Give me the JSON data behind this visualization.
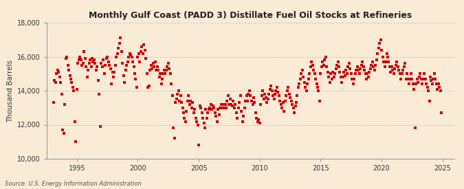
{
  "title": "Monthly Gulf Coast (PADD 3) Distillate Fuel Oil Stocks at Refineries",
  "ylabel": "Thousand Barrels",
  "source": "Source: U.S. Energy Information Administration",
  "background_color": "#faebd7",
  "marker_color": "#cc0000",
  "grid_color": "#bbbbbb",
  "ylim": [
    10000,
    18000
  ],
  "yticks": [
    10000,
    12000,
    14000,
    16000,
    18000
  ],
  "ytick_labels": [
    "10,000",
    "12,000",
    "14,000",
    "16,000",
    "18,000"
  ],
  "xlim_start": 1992.5,
  "xlim_end": 2026.0,
  "xticks": [
    1995,
    2000,
    2005,
    2010,
    2015,
    2020,
    2025
  ],
  "data": [
    [
      1993.08,
      13300
    ],
    [
      1993.17,
      14600
    ],
    [
      1993.25,
      14500
    ],
    [
      1993.33,
      15000
    ],
    [
      1993.42,
      15200
    ],
    [
      1993.5,
      15100
    ],
    [
      1993.58,
      14800
    ],
    [
      1993.67,
      14500
    ],
    [
      1993.75,
      13800
    ],
    [
      1993.83,
      11700
    ],
    [
      1993.92,
      11500
    ],
    [
      1994.0,
      13200
    ],
    [
      1994.08,
      15900
    ],
    [
      1994.17,
      16000
    ],
    [
      1994.25,
      15500
    ],
    [
      1994.33,
      15200
    ],
    [
      1994.42,
      14900
    ],
    [
      1994.5,
      14700
    ],
    [
      1994.58,
      14500
    ],
    [
      1994.67,
      14200
    ],
    [
      1994.75,
      14000
    ],
    [
      1994.83,
      12200
    ],
    [
      1994.92,
      11000
    ],
    [
      1995.0,
      14100
    ],
    [
      1995.08,
      15600
    ],
    [
      1995.17,
      15800
    ],
    [
      1995.25,
      16000
    ],
    [
      1995.33,
      15800
    ],
    [
      1995.42,
      15500
    ],
    [
      1995.5,
      15600
    ],
    [
      1995.58,
      16300
    ],
    [
      1995.67,
      15900
    ],
    [
      1995.75,
      15400
    ],
    [
      1995.83,
      14800
    ],
    [
      1995.92,
      15200
    ],
    [
      1996.0,
      15600
    ],
    [
      1996.08,
      15800
    ],
    [
      1996.17,
      15400
    ],
    [
      1996.25,
      15900
    ],
    [
      1996.33,
      15700
    ],
    [
      1996.42,
      15800
    ],
    [
      1996.5,
      15600
    ],
    [
      1996.58,
      15200
    ],
    [
      1996.67,
      15400
    ],
    [
      1996.75,
      14600
    ],
    [
      1996.83,
      13800
    ],
    [
      1996.92,
      11900
    ],
    [
      1997.0,
      15600
    ],
    [
      1997.08,
      15400
    ],
    [
      1997.17,
      15800
    ],
    [
      1997.25,
      15000
    ],
    [
      1997.33,
      15500
    ],
    [
      1997.42,
      15900
    ],
    [
      1997.5,
      16000
    ],
    [
      1997.58,
      15700
    ],
    [
      1997.67,
      15500
    ],
    [
      1997.75,
      15300
    ],
    [
      1997.83,
      14400
    ],
    [
      1997.92,
      15100
    ],
    [
      1998.0,
      14800
    ],
    [
      1998.08,
      15100
    ],
    [
      1998.17,
      15500
    ],
    [
      1998.25,
      16000
    ],
    [
      1998.33,
      16200
    ],
    [
      1998.42,
      16500
    ],
    [
      1998.5,
      16800
    ],
    [
      1998.58,
      17100
    ],
    [
      1998.67,
      16300
    ],
    [
      1998.75,
      15600
    ],
    [
      1998.83,
      14900
    ],
    [
      1998.92,
      14500
    ],
    [
      1999.0,
      15200
    ],
    [
      1999.08,
      15500
    ],
    [
      1999.17,
      15700
    ],
    [
      1999.25,
      16000
    ],
    [
      1999.33,
      16200
    ],
    [
      1999.42,
      16100
    ],
    [
      1999.5,
      16000
    ],
    [
      1999.58,
      15700
    ],
    [
      1999.67,
      15400
    ],
    [
      1999.75,
      15000
    ],
    [
      1999.83,
      14700
    ],
    [
      1999.92,
      14200
    ],
    [
      2000.0,
      16000
    ],
    [
      2000.08,
      16200
    ],
    [
      2000.17,
      15700
    ],
    [
      2000.25,
      16300
    ],
    [
      2000.33,
      16600
    ],
    [
      2000.42,
      16200
    ],
    [
      2000.5,
      16700
    ],
    [
      2000.58,
      16400
    ],
    [
      2000.67,
      15900
    ],
    [
      2000.75,
      15000
    ],
    [
      2000.83,
      14200
    ],
    [
      2000.92,
      14300
    ],
    [
      2001.0,
      15200
    ],
    [
      2001.08,
      15500
    ],
    [
      2001.17,
      15300
    ],
    [
      2001.25,
      15600
    ],
    [
      2001.33,
      15400
    ],
    [
      2001.42,
      15700
    ],
    [
      2001.5,
      15200
    ],
    [
      2001.58,
      15400
    ],
    [
      2001.67,
      15200
    ],
    [
      2001.75,
      14800
    ],
    [
      2001.83,
      15000
    ],
    [
      2001.92,
      14400
    ],
    [
      2002.0,
      14700
    ],
    [
      2002.08,
      15000
    ],
    [
      2002.17,
      15200
    ],
    [
      2002.25,
      15000
    ],
    [
      2002.33,
      15200
    ],
    [
      2002.42,
      15400
    ],
    [
      2002.5,
      15600
    ],
    [
      2002.58,
      15300
    ],
    [
      2002.67,
      15000
    ],
    [
      2002.75,
      14400
    ],
    [
      2002.83,
      13700
    ],
    [
      2002.92,
      11800
    ],
    [
      2003.0,
      11200
    ],
    [
      2003.08,
      13300
    ],
    [
      2003.17,
      13500
    ],
    [
      2003.25,
      13800
    ],
    [
      2003.33,
      14000
    ],
    [
      2003.42,
      13400
    ],
    [
      2003.5,
      13700
    ],
    [
      2003.58,
      13300
    ],
    [
      2003.67,
      13000
    ],
    [
      2003.75,
      12700
    ],
    [
      2003.83,
      12400
    ],
    [
      2003.92,
      12200
    ],
    [
      2004.0,
      12800
    ],
    [
      2004.08,
      13400
    ],
    [
      2004.17,
      13700
    ],
    [
      2004.25,
      13200
    ],
    [
      2004.33,
      13400
    ],
    [
      2004.42,
      13000
    ],
    [
      2004.5,
      13300
    ],
    [
      2004.58,
      12700
    ],
    [
      2004.67,
      12900
    ],
    [
      2004.75,
      12400
    ],
    [
      2004.83,
      12200
    ],
    [
      2004.92,
      12000
    ],
    [
      2005.0,
      10800
    ],
    [
      2005.08,
      13100
    ],
    [
      2005.17,
      13000
    ],
    [
      2005.25,
      12700
    ],
    [
      2005.33,
      12400
    ],
    [
      2005.42,
      12100
    ],
    [
      2005.5,
      11800
    ],
    [
      2005.58,
      12900
    ],
    [
      2005.67,
      12400
    ],
    [
      2005.75,
      12700
    ],
    [
      2005.83,
      12900
    ],
    [
      2005.92,
      13000
    ],
    [
      2006.0,
      13200
    ],
    [
      2006.08,
      12900
    ],
    [
      2006.17,
      13100
    ],
    [
      2006.25,
      13000
    ],
    [
      2006.33,
      12700
    ],
    [
      2006.42,
      12500
    ],
    [
      2006.5,
      12200
    ],
    [
      2006.58,
      12900
    ],
    [
      2006.67,
      12600
    ],
    [
      2006.75,
      13000
    ],
    [
      2006.83,
      13200
    ],
    [
      2006.92,
      13000
    ],
    [
      2007.0,
      13200
    ],
    [
      2007.08,
      13000
    ],
    [
      2007.17,
      13200
    ],
    [
      2007.25,
      13000
    ],
    [
      2007.33,
      13400
    ],
    [
      2007.42,
      13700
    ],
    [
      2007.5,
      13200
    ],
    [
      2007.58,
      13500
    ],
    [
      2007.67,
      13200
    ],
    [
      2007.75,
      13100
    ],
    [
      2007.83,
      13400
    ],
    [
      2007.92,
      13000
    ],
    [
      2008.0,
      13200
    ],
    [
      2008.08,
      12700
    ],
    [
      2008.17,
      12400
    ],
    [
      2008.25,
      13000
    ],
    [
      2008.33,
      13300
    ],
    [
      2008.42,
      13700
    ],
    [
      2008.5,
      12800
    ],
    [
      2008.58,
      12200
    ],
    [
      2008.67,
      12500
    ],
    [
      2008.75,
      13000
    ],
    [
      2008.83,
      13400
    ],
    [
      2008.92,
      13700
    ],
    [
      2009.0,
      13400
    ],
    [
      2009.08,
      13800
    ],
    [
      2009.17,
      14000
    ],
    [
      2009.25,
      13700
    ],
    [
      2009.33,
      13400
    ],
    [
      2009.42,
      13200
    ],
    [
      2009.5,
      13600
    ],
    [
      2009.58,
      13300
    ],
    [
      2009.67,
      12700
    ],
    [
      2009.75,
      12400
    ],
    [
      2009.83,
      12200
    ],
    [
      2009.92,
      12300
    ],
    [
      2010.0,
      12100
    ],
    [
      2010.08,
      13200
    ],
    [
      2010.17,
      13700
    ],
    [
      2010.25,
      14000
    ],
    [
      2010.33,
      13500
    ],
    [
      2010.42,
      13800
    ],
    [
      2010.5,
      13600
    ],
    [
      2010.58,
      13300
    ],
    [
      2010.67,
      13500
    ],
    [
      2010.75,
      13800
    ],
    [
      2010.83,
      14100
    ],
    [
      2010.92,
      14300
    ],
    [
      2011.0,
      14000
    ],
    [
      2011.08,
      13700
    ],
    [
      2011.17,
      13500
    ],
    [
      2011.25,
      13800
    ],
    [
      2011.33,
      14000
    ],
    [
      2011.42,
      14200
    ],
    [
      2011.5,
      13900
    ],
    [
      2011.58,
      13700
    ],
    [
      2011.67,
      13400
    ],
    [
      2011.75,
      13200
    ],
    [
      2011.83,
      13000
    ],
    [
      2011.92,
      13300
    ],
    [
      2012.0,
      12800
    ],
    [
      2012.08,
      13400
    ],
    [
      2012.17,
      13700
    ],
    [
      2012.25,
      14000
    ],
    [
      2012.33,
      14200
    ],
    [
      2012.42,
      13800
    ],
    [
      2012.5,
      13600
    ],
    [
      2012.58,
      13400
    ],
    [
      2012.67,
      13200
    ],
    [
      2012.75,
      13000
    ],
    [
      2012.83,
      12700
    ],
    [
      2012.92,
      13100
    ],
    [
      2013.0,
      13300
    ],
    [
      2013.08,
      13700
    ],
    [
      2013.17,
      14200
    ],
    [
      2013.25,
      14400
    ],
    [
      2013.33,
      14700
    ],
    [
      2013.42,
      15000
    ],
    [
      2013.5,
      15200
    ],
    [
      2013.58,
      14800
    ],
    [
      2013.67,
      14500
    ],
    [
      2013.75,
      14200
    ],
    [
      2013.83,
      14000
    ],
    [
      2013.92,
      14400
    ],
    [
      2014.0,
      14700
    ],
    [
      2014.08,
      15000
    ],
    [
      2014.17,
      15400
    ],
    [
      2014.25,
      15700
    ],
    [
      2014.33,
      15500
    ],
    [
      2014.42,
      15200
    ],
    [
      2014.5,
      15000
    ],
    [
      2014.58,
      14700
    ],
    [
      2014.67,
      14400
    ],
    [
      2014.75,
      14200
    ],
    [
      2014.83,
      14000
    ],
    [
      2014.92,
      13400
    ],
    [
      2015.0,
      15000
    ],
    [
      2015.08,
      15400
    ],
    [
      2015.17,
      15700
    ],
    [
      2015.25,
      15500
    ],
    [
      2015.33,
      15800
    ],
    [
      2015.42,
      16000
    ],
    [
      2015.5,
      15400
    ],
    [
      2015.58,
      15100
    ],
    [
      2015.67,
      14800
    ],
    [
      2015.75,
      14500
    ],
    [
      2015.83,
      15000
    ],
    [
      2015.92,
      14700
    ],
    [
      2016.0,
      15100
    ],
    [
      2016.08,
      14800
    ],
    [
      2016.17,
      15000
    ],
    [
      2016.25,
      15300
    ],
    [
      2016.33,
      15500
    ],
    [
      2016.42,
      15700
    ],
    [
      2016.5,
      15400
    ],
    [
      2016.58,
      15100
    ],
    [
      2016.67,
      14800
    ],
    [
      2016.75,
      14500
    ],
    [
      2016.83,
      14800
    ],
    [
      2016.92,
      15100
    ],
    [
      2017.0,
      14900
    ],
    [
      2017.08,
      15200
    ],
    [
      2017.17,
      15000
    ],
    [
      2017.25,
      15400
    ],
    [
      2017.33,
      15600
    ],
    [
      2017.42,
      15300
    ],
    [
      2017.5,
      15000
    ],
    [
      2017.58,
      14700
    ],
    [
      2017.67,
      14400
    ],
    [
      2017.75,
      14700
    ],
    [
      2017.83,
      15000
    ],
    [
      2017.92,
      15200
    ],
    [
      2018.0,
      15400
    ],
    [
      2018.08,
      15200
    ],
    [
      2018.17,
      15000
    ],
    [
      2018.25,
      15300
    ],
    [
      2018.33,
      15500
    ],
    [
      2018.42,
      15700
    ],
    [
      2018.5,
      15400
    ],
    [
      2018.58,
      15200
    ],
    [
      2018.67,
      15000
    ],
    [
      2018.75,
      14700
    ],
    [
      2018.83,
      15000
    ],
    [
      2018.92,
      14800
    ],
    [
      2019.0,
      15100
    ],
    [
      2019.08,
      15300
    ],
    [
      2019.17,
      15500
    ],
    [
      2019.25,
      15700
    ],
    [
      2019.33,
      15400
    ],
    [
      2019.42,
      15200
    ],
    [
      2019.5,
      15500
    ],
    [
      2019.58,
      15800
    ],
    [
      2019.67,
      16200
    ],
    [
      2019.75,
      16500
    ],
    [
      2019.83,
      16800
    ],
    [
      2019.92,
      17000
    ],
    [
      2020.0,
      16400
    ],
    [
      2020.08,
      16000
    ],
    [
      2020.17,
      15700
    ],
    [
      2020.25,
      15400
    ],
    [
      2020.33,
      15700
    ],
    [
      2020.42,
      16200
    ],
    [
      2020.5,
      16000
    ],
    [
      2020.58,
      15700
    ],
    [
      2020.67,
      15400
    ],
    [
      2020.75,
      15100
    ],
    [
      2020.83,
      15400
    ],
    [
      2020.92,
      15200
    ],
    [
      2021.0,
      15000
    ],
    [
      2021.08,
      15300
    ],
    [
      2021.17,
      15500
    ],
    [
      2021.25,
      15700
    ],
    [
      2021.33,
      15400
    ],
    [
      2021.42,
      15200
    ],
    [
      2021.5,
      15000
    ],
    [
      2021.58,
      14700
    ],
    [
      2021.67,
      15000
    ],
    [
      2021.75,
      15200
    ],
    [
      2021.83,
      15400
    ],
    [
      2021.92,
      15600
    ],
    [
      2022.0,
      14700
    ],
    [
      2022.08,
      15000
    ],
    [
      2022.17,
      14700
    ],
    [
      2022.25,
      14400
    ],
    [
      2022.33,
      14700
    ],
    [
      2022.42,
      15000
    ],
    [
      2022.5,
      14700
    ],
    [
      2022.58,
      14400
    ],
    [
      2022.67,
      14100
    ],
    [
      2022.75,
      11800
    ],
    [
      2022.83,
      14400
    ],
    [
      2022.92,
      14700
    ],
    [
      2023.0,
      14500
    ],
    [
      2023.08,
      14800
    ],
    [
      2023.17,
      15000
    ],
    [
      2023.25,
      14700
    ],
    [
      2023.33,
      14400
    ],
    [
      2023.42,
      14700
    ],
    [
      2023.5,
      15000
    ],
    [
      2023.58,
      14700
    ],
    [
      2023.67,
      14400
    ],
    [
      2023.75,
      14200
    ],
    [
      2023.83,
      14000
    ],
    [
      2023.92,
      13400
    ],
    [
      2024.0,
      14800
    ],
    [
      2024.08,
      14600
    ],
    [
      2024.17,
      14400
    ],
    [
      2024.25,
      14700
    ],
    [
      2024.33,
      15000
    ],
    [
      2024.42,
      14700
    ],
    [
      2024.5,
      14400
    ],
    [
      2024.58,
      14100
    ],
    [
      2024.67,
      14400
    ],
    [
      2024.75,
      14200
    ],
    [
      2024.83,
      14000
    ],
    [
      2024.92,
      12700
    ]
  ]
}
